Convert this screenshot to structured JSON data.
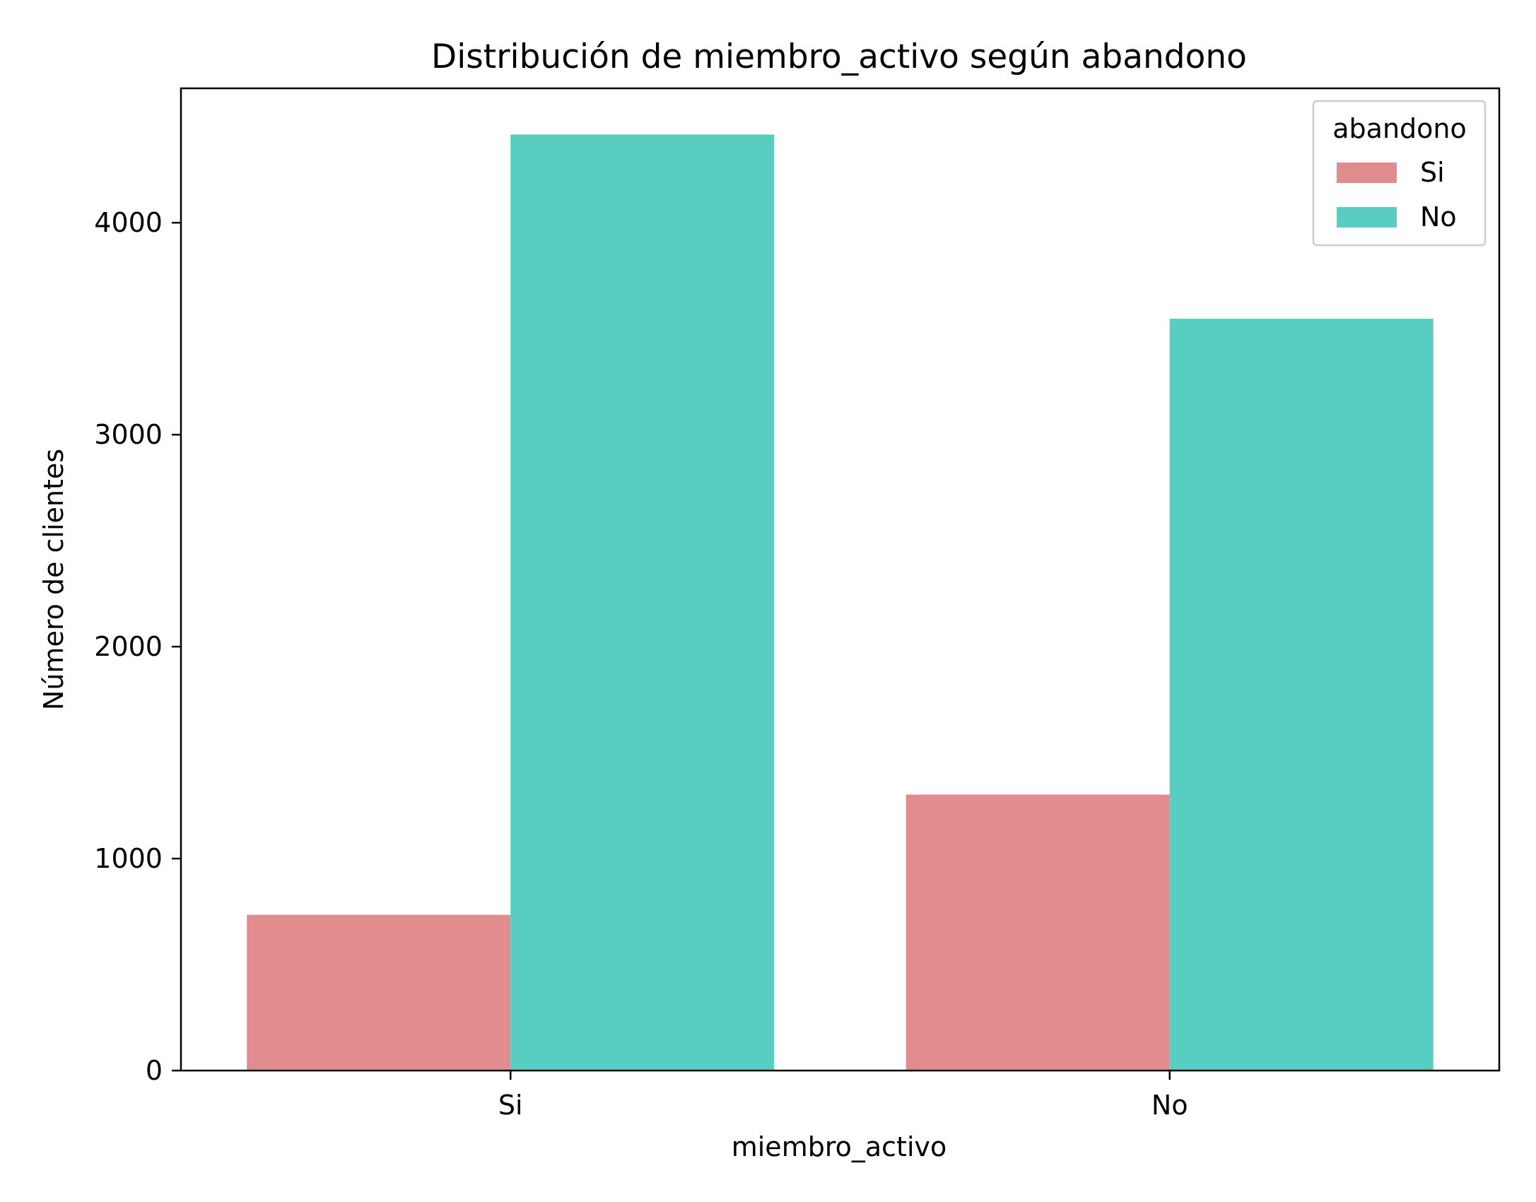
{
  "chart_data": {
    "type": "bar",
    "title": "Distribución de miembro_activo según abandono",
    "xlabel": "miembro_activo",
    "ylabel": "Número de clientes",
    "categories": [
      "Si",
      "No"
    ],
    "series": [
      {
        "name": "Si",
        "color": "#e18d90",
        "values": [
          735,
          1302
        ]
      },
      {
        "name": "No",
        "color": "#58cdc1",
        "values": [
          4416,
          3547
        ]
      }
    ],
    "ylim": [
      0,
      4634
    ],
    "yticks": [
      0,
      1000,
      2000,
      3000,
      4000
    ],
    "ytick_labels": [
      "0",
      "1000",
      "2000",
      "3000",
      "4000"
    ],
    "legend": {
      "title": "abandono",
      "position": "top-right"
    },
    "grid": false
  }
}
